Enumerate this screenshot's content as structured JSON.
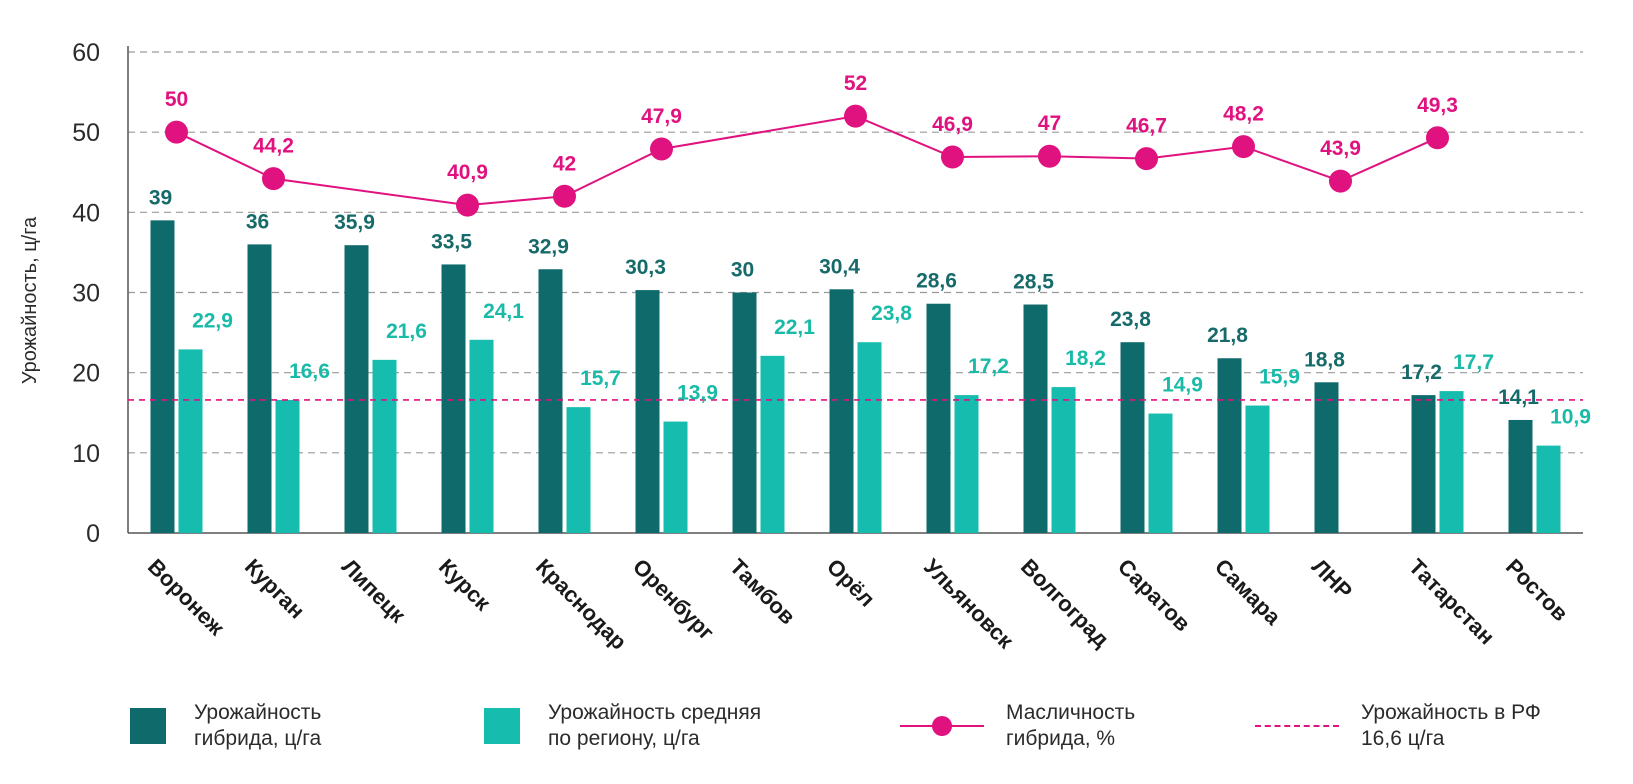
{
  "chart_data": {
    "type": "bar",
    "title": "",
    "ylabel": "Урожайность, ц/га",
    "ylim": [
      0,
      60
    ],
    "yticks": [
      "0",
      "10",
      "20",
      "30",
      "40",
      "50",
      "60"
    ],
    "categories": [
      "Воронеж",
      "Курган",
      "Липецк",
      "Курск",
      "Краснодар",
      "Оренбург",
      "Тамбов",
      "Орёл",
      "Ульяновск",
      "Волгоград",
      "Саратов",
      "Самара",
      "ЛНР",
      "Татарстан",
      "Ростов"
    ],
    "series": [
      {
        "name": "Урожайность гибрида, ц/га",
        "kind": "bar",
        "color": "#0f6b6b",
        "values": [
          39,
          36,
          35.9,
          33.5,
          32.9,
          30.3,
          30,
          30.4,
          28.6,
          28.5,
          23.8,
          21.8,
          18.8,
          17.2,
          14.1
        ],
        "labels": [
          "39",
          "36",
          "35,9",
          "33,5",
          "32,9",
          "30,3",
          "30",
          "30,4",
          "28,6",
          "28,5",
          "23,8",
          "21,8",
          "18,8",
          "17,2",
          "14,1"
        ]
      },
      {
        "name": "Урожайность средняя по региону, ц/га",
        "kind": "bar",
        "color": "#16bcae",
        "values": [
          22.9,
          16.6,
          21.6,
          24.1,
          15.7,
          13.9,
          22.1,
          23.8,
          17.2,
          18.2,
          14.9,
          15.9,
          null,
          17.7,
          10.9
        ],
        "labels": [
          "22,9",
          "16,6",
          "21,6",
          "24,1",
          "15,7",
          "13,9",
          "22,1",
          "23,8",
          "17,2",
          "18,2",
          "14,9",
          "15,9",
          "",
          "17,7",
          "10,9"
        ]
      },
      {
        "name": "Масличность гибрида, %",
        "kind": "line",
        "color": "#e0127f",
        "values": [
          50,
          44.2,
          null,
          40.9,
          42,
          47.9,
          null,
          52,
          46.9,
          47,
          46.7,
          48.2,
          43.9,
          49.3,
          null
        ],
        "labels": [
          "50",
          "44,2",
          "",
          "40,9",
          "42",
          "47,9",
          "",
          "52",
          "46,9",
          "47",
          "46,7",
          "48,2",
          "43,9",
          "49,3",
          ""
        ]
      }
    ],
    "reference_line": {
      "name": "Урожайность в РФ 16,6 ц/га",
      "value": 16.6,
      "color": "#e0127f"
    },
    "legend": [
      {
        "text": "Урожайность\nгибрида, ц/га",
        "kind": "box",
        "color": "#0f6b6b"
      },
      {
        "text": "Урожайность средняя\nпо региону, ц/га",
        "kind": "box",
        "color": "#16bcae"
      },
      {
        "text": "Масличность\nгибрида, %",
        "kind": "marker-line",
        "color": "#e0127f"
      },
      {
        "text": "Урожайность в РФ\n16,6 ц/га",
        "kind": "dashed",
        "color": "#e0127f"
      }
    ]
  }
}
